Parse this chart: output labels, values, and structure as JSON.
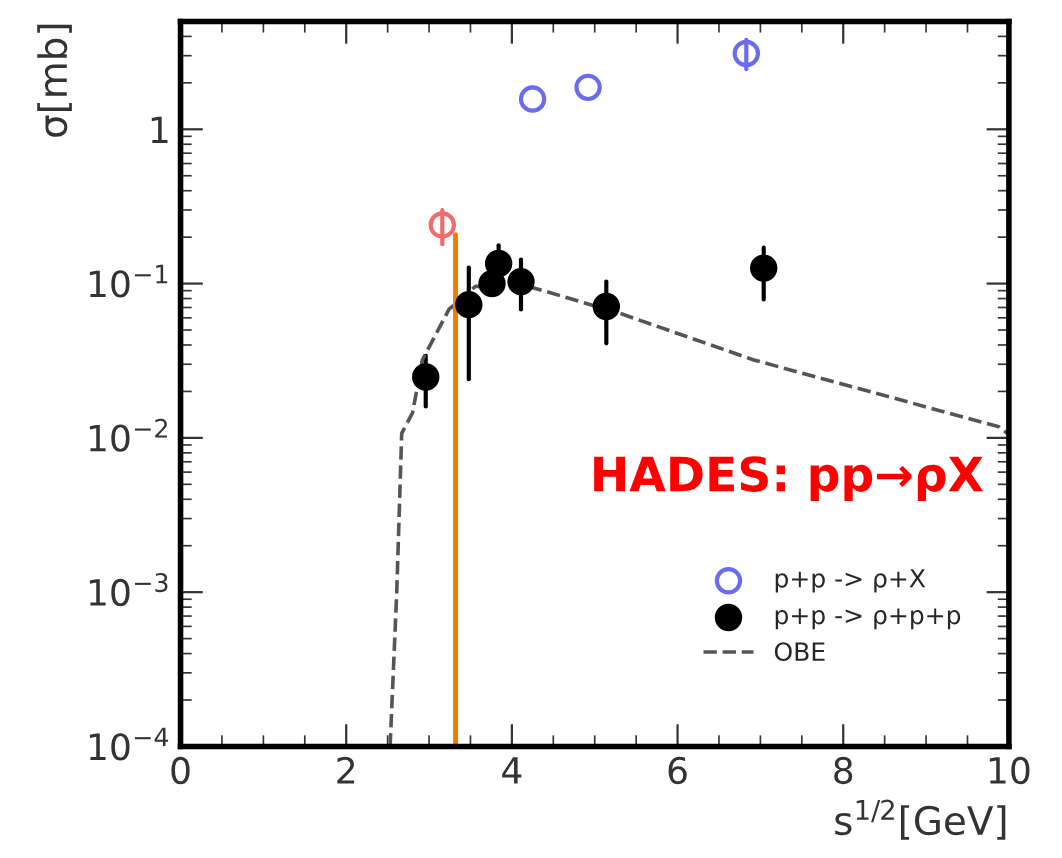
{
  "chart_data": {
    "type": "scatter",
    "xlabel": "s$^{1/2}$[GeV]",
    "ylabel": "σ[mb]",
    "log": "y",
    "xlim": [
      0,
      10
    ],
    "ylim": [
      0.0001,
      5
    ],
    "xticks": [
      0,
      2,
      4,
      6,
      8,
      10
    ],
    "yticks": [
      {
        "value": 0.0001,
        "label": "10$^{−4}$"
      },
      {
        "value": 0.001,
        "label": "10$^{−3}$"
      },
      {
        "value": 0.01,
        "label": "10$^{−2}$"
      },
      {
        "value": 0.1,
        "label": "10$^{−1}$"
      },
      {
        "value": 1,
        "label": "1"
      }
    ],
    "legend": "bottom right",
    "grid": false,
    "series": [
      {
        "name": "p+p -> ρ+X",
        "marker": "circle",
        "color": "#6b6bf0",
        "x": [
          4.25,
          4.92,
          6.83
        ],
        "values": [
          1.57,
          1.87,
          3.1
        ],
        "errors": [
          null,
          null,
          [
            2.45,
            3.8
          ]
        ]
      },
      {
        "marker": "circle",
        "color": "#f06b6b",
        "x": [
          3.16
        ],
        "values": [
          0.24
        ],
        "errors": [
          [
            0.18,
            0.3
          ]
        ]
      },
      {
        "name": "p+p -> ρ+p+p",
        "marker": "circle",
        "color": "#000000",
        "x": [
          2.96,
          3.48,
          3.76,
          3.84,
          4.11,
          5.14,
          7.04
        ],
        "values": [
          0.0248,
          0.073,
          0.1,
          0.135,
          0.103,
          0.071,
          0.126
        ],
        "errors": [
          [
            0.016,
            0.034
          ],
          [
            0.024,
            0.127
          ],
          null,
          [
            0.098,
            0.177
          ],
          [
            0.068,
            0.143
          ],
          [
            0.041,
            0.103
          ],
          [
            0.079,
            0.171
          ]
        ]
      },
      {
        "name": "OBE",
        "type": "line",
        "line_style": "dashed",
        "color": "#555555",
        "x": [
          2.53,
          2.61,
          2.67,
          2.8,
          2.92,
          3.24,
          3.56,
          4.2,
          5.31,
          6.92,
          9.88,
          10
        ],
        "values": [
          0.0001,
          0.001,
          0.0107,
          0.0145,
          0.032,
          0.068,
          0.096,
          0.096,
          0.064,
          0.032,
          0.0118,
          0.0105
        ]
      },
      {
        "type": "line",
        "line_style": "solid",
        "color": "#f07f00",
        "x": [
          3.32,
          3.32
        ],
        "values": [
          0.0001,
          0.207
        ]
      }
    ],
    "annotations": [
      "HADES: pp→ρX"
    ]
  }
}
